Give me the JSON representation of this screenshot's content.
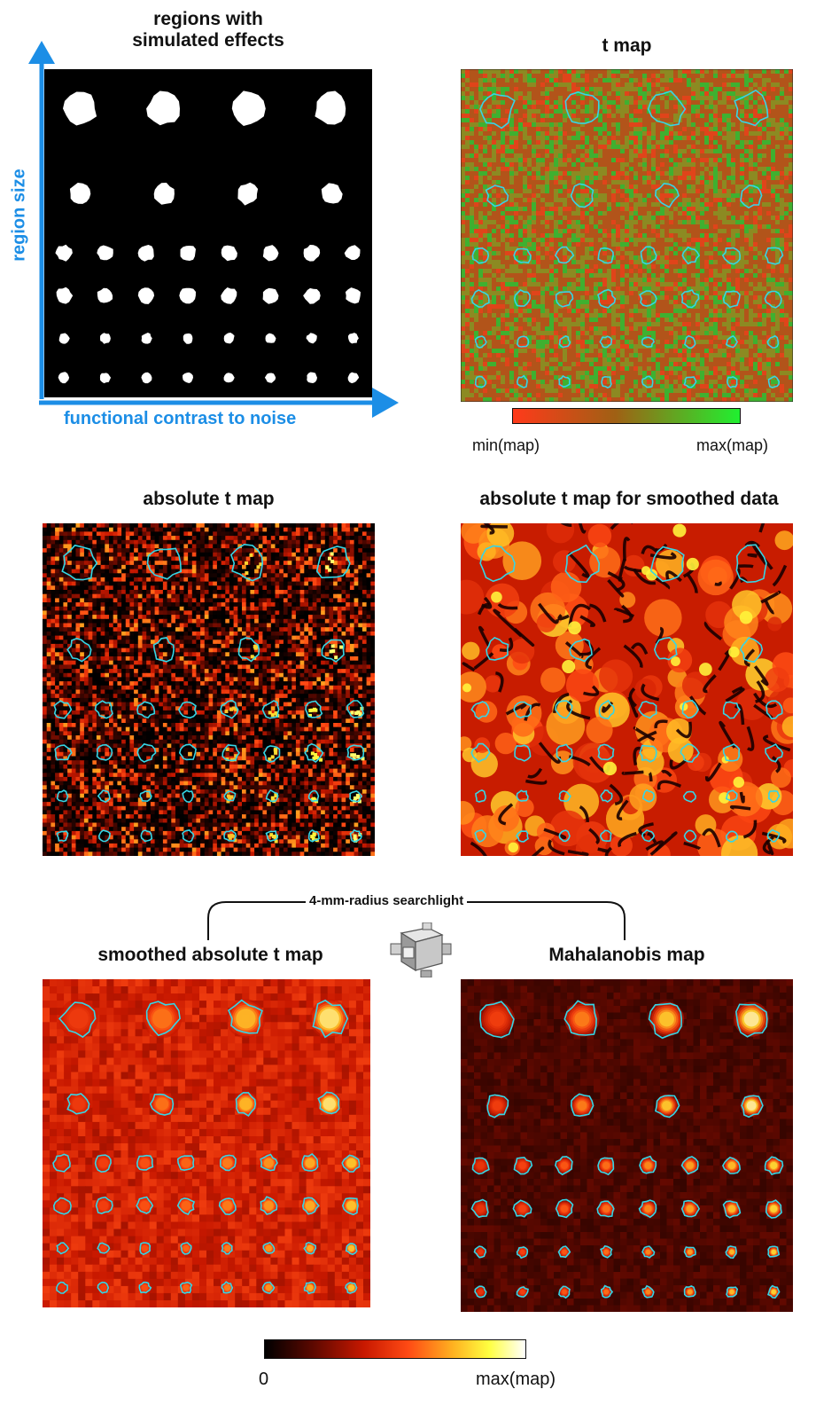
{
  "panels": {
    "simulated": {
      "title": "regions with\nsimulated effects",
      "y_axis_label": "region size",
      "x_axis_label": "functional contrast to noise"
    },
    "t_map": {
      "title": "t map",
      "colorbar": {
        "min_label": "min(map)",
        "max_label": "max(map)"
      }
    },
    "abs_t_map": {
      "title": "absolute t map"
    },
    "abs_t_smoothed_data": {
      "title": "absolute t map for smoothed data"
    },
    "smoothed_abs_t": {
      "title": "smoothed absolute t map"
    },
    "mahalanobis": {
      "title": "Mahalanobis map"
    }
  },
  "searchlight": {
    "label": "4-mm-radius searchlight",
    "icon": "searchlight-cube-icon"
  },
  "bottom_colorbar": {
    "min_label": "0",
    "max_label": "max(map)"
  },
  "colors": {
    "axis_blue": "#1c8ee6",
    "outline_cyan": "#35d6e6",
    "tmap_low": "#ff3a1a",
    "tmap_high": "#20f030",
    "hot_low": "#000000",
    "hot_mid": "#ff4a14",
    "hot_high": "#ffffff"
  }
}
